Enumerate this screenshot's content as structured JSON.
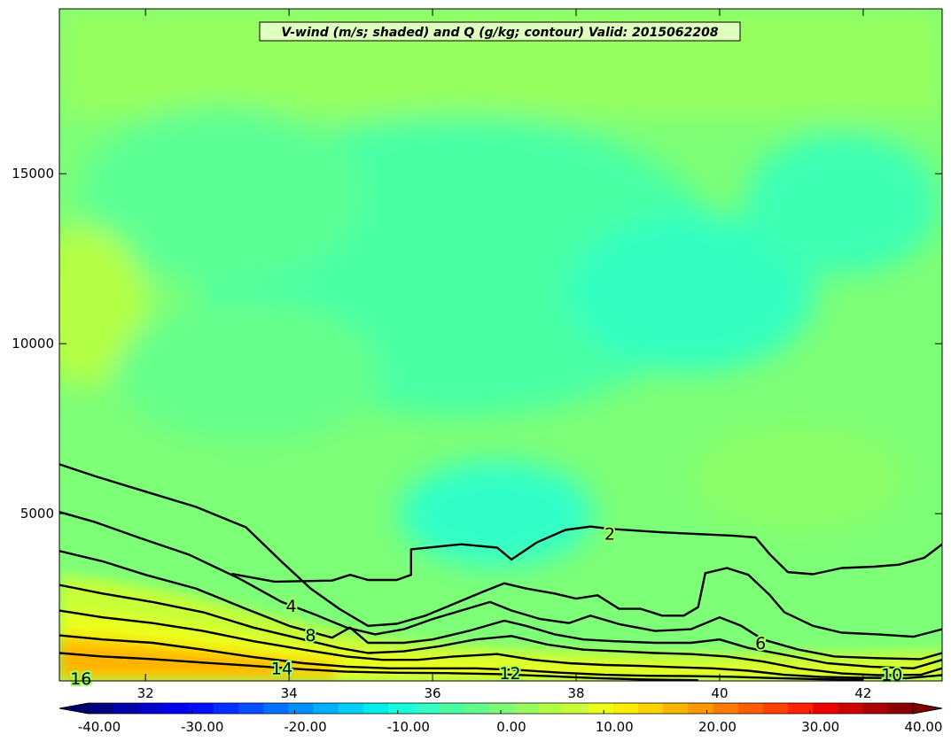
{
  "chart_data": {
    "type": "heatmap",
    "title": "V-wind (m/s; shaded) and Q (g/kg; contour) Valid: 2015062208",
    "x_ticks": [
      32,
      34,
      36,
      38,
      40,
      42
    ],
    "y_ticks": [
      5000,
      10000,
      15000
    ],
    "xlim": [
      30.8,
      43.1
    ],
    "ylim": [
      80,
      19850
    ],
    "shaded_field": "V-wind (m/s)",
    "contour_field": "Q (g/kg)",
    "colorbar": {
      "range": [
        -40,
        40
      ],
      "tick_values": [
        -40,
        -30,
        -20,
        -10,
        0,
        10,
        20,
        30,
        40
      ],
      "tick_labels": [
        "-40.00",
        "-30.00",
        "-20.00",
        "-10.00",
        "0.00",
        "10.00",
        "20.00",
        "30.00",
        "40.00"
      ],
      "extend": "both"
    },
    "contour_labels": [
      {
        "text": "2",
        "x": 38.47,
        "y": 4420
      },
      {
        "text": "4",
        "x": 34.03,
        "y": 2300
      },
      {
        "text": "6",
        "x": 40.57,
        "y": 1200
      },
      {
        "text": "8",
        "x": 34.3,
        "y": 1430
      },
      {
        "text": "10",
        "x": 42.4,
        "y": 270
      },
      {
        "text": "12",
        "x": 37.08,
        "y": 320
      },
      {
        "text": "14",
        "x": 33.9,
        "y": 460
      },
      {
        "text": "16",
        "x": 31.1,
        "y": 160
      }
    ],
    "contours": [
      {
        "level": 2,
        "points": [
          [
            33.2,
            3230
          ],
          [
            33.8,
            3000
          ],
          [
            34.6,
            3030
          ],
          [
            34.85,
            3200
          ],
          [
            35.1,
            3050
          ],
          [
            35.5,
            3050
          ],
          [
            35.7,
            3200
          ],
          [
            35.7,
            3950
          ],
          [
            36.4,
            4100
          ],
          [
            36.9,
            4000
          ],
          [
            37.1,
            3650
          ],
          [
            37.45,
            4150
          ],
          [
            37.85,
            4520
          ],
          [
            38.2,
            4620
          ],
          [
            38.5,
            4550
          ],
          [
            39.2,
            4450
          ],
          [
            40.2,
            4350
          ],
          [
            40.5,
            4300
          ],
          [
            40.7,
            3800
          ],
          [
            40.95,
            3280
          ],
          [
            41.3,
            3220
          ],
          [
            41.7,
            3400
          ],
          [
            42.15,
            3440
          ],
          [
            42.5,
            3500
          ],
          [
            42.85,
            3700
          ],
          [
            43.1,
            4100
          ]
        ]
      },
      {
        "level": 4,
        "points": [
          [
            30.8,
            6450
          ],
          [
            31.3,
            6100
          ],
          [
            32.0,
            5650
          ],
          [
            32.7,
            5200
          ],
          [
            33.4,
            4600
          ],
          [
            33.9,
            3580
          ],
          [
            34.3,
            2800
          ],
          [
            34.7,
            2200
          ],
          [
            35.1,
            1700
          ],
          [
            35.5,
            1760
          ],
          [
            35.9,
            2000
          ],
          [
            36.3,
            2350
          ],
          [
            36.7,
            2700
          ],
          [
            37.0,
            2950
          ],
          [
            37.3,
            2800
          ],
          [
            37.7,
            2650
          ],
          [
            38.0,
            2500
          ],
          [
            38.3,
            2600
          ],
          [
            38.6,
            2200
          ],
          [
            38.9,
            2200
          ],
          [
            39.2,
            2000
          ],
          [
            39.5,
            2000
          ],
          [
            39.7,
            2250
          ],
          [
            39.8,
            3250
          ],
          [
            40.1,
            3400
          ],
          [
            40.4,
            3200
          ],
          [
            40.7,
            2600
          ],
          [
            40.9,
            2100
          ],
          [
            41.3,
            1700
          ],
          [
            41.7,
            1500
          ],
          [
            42.2,
            1450
          ],
          [
            42.7,
            1380
          ],
          [
            43.1,
            1600
          ]
        ]
      },
      {
        "level": 6,
        "points": [
          [
            30.8,
            5050
          ],
          [
            31.3,
            4750
          ],
          [
            31.9,
            4300
          ],
          [
            32.6,
            3800
          ],
          [
            33.3,
            3100
          ],
          [
            33.9,
            2400
          ],
          [
            34.4,
            2000
          ],
          [
            34.8,
            1650
          ],
          [
            35.2,
            1450
          ],
          [
            35.6,
            1600
          ],
          [
            36.0,
            1900
          ],
          [
            36.4,
            2150
          ],
          [
            36.8,
            2400
          ],
          [
            37.1,
            2150
          ],
          [
            37.5,
            1900
          ],
          [
            37.9,
            1780
          ],
          [
            38.2,
            2000
          ],
          [
            38.6,
            1750
          ],
          [
            39.1,
            1550
          ],
          [
            39.6,
            1600
          ],
          [
            40.0,
            1950
          ],
          [
            40.3,
            1700
          ],
          [
            40.6,
            1300
          ],
          [
            41.1,
            1000
          ],
          [
            41.6,
            800
          ],
          [
            42.2,
            750
          ],
          [
            42.8,
            720
          ],
          [
            43.1,
            900
          ]
        ]
      },
      {
        "level": 8,
        "points": [
          [
            30.8,
            3900
          ],
          [
            31.4,
            3600
          ],
          [
            32.0,
            3200
          ],
          [
            32.7,
            2800
          ],
          [
            33.4,
            2200
          ],
          [
            34.0,
            1700
          ],
          [
            34.6,
            1350
          ],
          [
            34.85,
            1650
          ],
          [
            35.1,
            1200
          ],
          [
            35.6,
            1200
          ],
          [
            36.0,
            1300
          ],
          [
            36.5,
            1550
          ],
          [
            37.0,
            1850
          ],
          [
            37.3,
            1700
          ],
          [
            37.7,
            1450
          ],
          [
            38.1,
            1300
          ],
          [
            38.5,
            1250
          ],
          [
            39.1,
            1200
          ],
          [
            39.6,
            1200
          ],
          [
            40.0,
            1300
          ],
          [
            40.4,
            1050
          ],
          [
            40.9,
            850
          ],
          [
            41.5,
            600
          ],
          [
            42.1,
            500
          ],
          [
            42.7,
            450
          ],
          [
            43.1,
            700
          ]
        ]
      },
      {
        "level": 10,
        "points": [
          [
            30.8,
            2900
          ],
          [
            31.4,
            2650
          ],
          [
            32.1,
            2400
          ],
          [
            32.8,
            2100
          ],
          [
            33.5,
            1650
          ],
          [
            34.2,
            1300
          ],
          [
            34.7,
            1050
          ],
          [
            35.1,
            900
          ],
          [
            35.6,
            950
          ],
          [
            36.1,
            1100
          ],
          [
            36.6,
            1300
          ],
          [
            37.1,
            1400
          ],
          [
            37.6,
            1150
          ],
          [
            38.1,
            1000
          ],
          [
            38.6,
            950
          ],
          [
            39.1,
            900
          ],
          [
            39.6,
            870
          ],
          [
            40.1,
            800
          ],
          [
            40.6,
            650
          ],
          [
            41.1,
            450
          ],
          [
            41.7,
            300
          ],
          [
            42.2,
            250
          ],
          [
            42.8,
            260
          ],
          [
            43.1,
            450
          ]
        ]
      },
      {
        "level": 12,
        "points": [
          [
            30.8,
            2150
          ],
          [
            31.4,
            1950
          ],
          [
            32.1,
            1780
          ],
          [
            32.8,
            1550
          ],
          [
            33.5,
            1250
          ],
          [
            34.2,
            1000
          ],
          [
            34.8,
            800
          ],
          [
            35.3,
            700
          ],
          [
            35.8,
            700
          ],
          [
            36.3,
            800
          ],
          [
            36.9,
            870
          ],
          [
            37.4,
            700
          ],
          [
            37.9,
            600
          ],
          [
            38.4,
            550
          ],
          [
            38.9,
            520
          ],
          [
            39.4,
            480
          ],
          [
            39.9,
            450
          ],
          [
            40.4,
            380
          ],
          [
            40.9,
            260
          ],
          [
            41.4,
            200
          ],
          [
            42.0,
            170
          ],
          [
            42.6,
            160
          ],
          [
            43.1,
            250
          ]
        ]
      },
      {
        "level": 14,
        "points": [
          [
            30.8,
            1420
          ],
          [
            31.4,
            1300
          ],
          [
            32.1,
            1200
          ],
          [
            32.8,
            1000
          ],
          [
            33.5,
            780
          ],
          [
            34.2,
            600
          ],
          [
            34.8,
            500
          ],
          [
            35.4,
            450
          ],
          [
            36.0,
            450
          ],
          [
            36.6,
            450
          ],
          [
            37.2,
            400
          ],
          [
            37.8,
            320
          ],
          [
            38.4,
            260
          ],
          [
            39.0,
            230
          ],
          [
            39.6,
            220
          ],
          [
            40.2,
            200
          ],
          [
            40.8,
            160
          ],
          [
            41.4,
            130
          ],
          [
            42.0,
            115
          ]
        ]
      },
      {
        "level": 16,
        "points": [
          [
            30.8,
            900
          ],
          [
            31.4,
            800
          ],
          [
            32.1,
            720
          ],
          [
            32.8,
            620
          ],
          [
            33.5,
            520
          ],
          [
            34.2,
            420
          ],
          [
            34.8,
            350
          ],
          [
            35.5,
            320
          ],
          [
            36.2,
            310
          ],
          [
            36.9,
            280
          ],
          [
            37.6,
            220
          ],
          [
            38.3,
            160
          ],
          [
            39.0,
            120
          ],
          [
            39.7,
            100
          ]
        ]
      }
    ]
  }
}
